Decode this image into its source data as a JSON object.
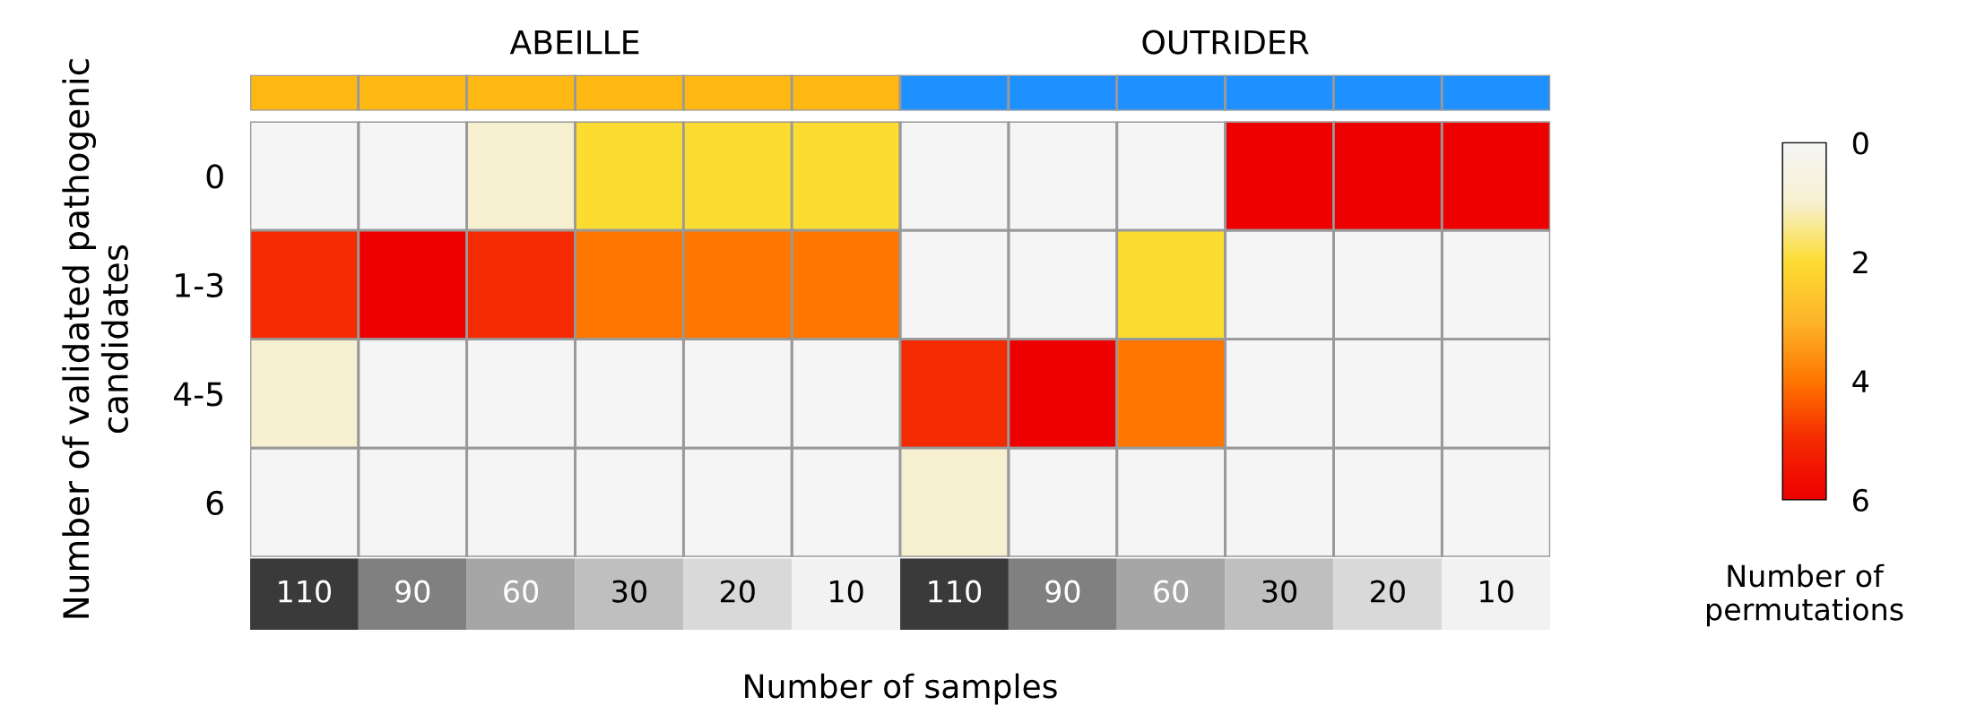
{
  "chart_data": {
    "type": "heatmap",
    "annotations": [
      "ABEILLE",
      "OUTRIDER"
    ],
    "xlabel": "Number of samples",
    "ylabel": "Number of validated pathogenic candidates",
    "clabel": "Number of permutations",
    "categories": [
      "110",
      "90",
      "60",
      "30",
      "20",
      "10",
      "110",
      "90",
      "60",
      "30",
      "20",
      "10"
    ],
    "y_categories": [
      "0",
      "1-3",
      "4-5",
      "6"
    ],
    "cells": [
      [
        null,
        null,
        1,
        2,
        2,
        2,
        null,
        null,
        null,
        6,
        6,
        6
      ],
      [
        5,
        6,
        5,
        4,
        4,
        4,
        null,
        null,
        2,
        null,
        null,
        null
      ],
      [
        1,
        null,
        null,
        null,
        null,
        null,
        5,
        6,
        4,
        null,
        null,
        null
      ],
      [
        null,
        null,
        null,
        null,
        null,
        null,
        1,
        null,
        null,
        null,
        null,
        null
      ]
    ],
    "colors": [
      "#f5f5f5",
      "#f7f0d0",
      "#fddc32",
      "#fdb52a",
      "#ff7700",
      "#f42a00",
      "#ee0000"
    ],
    "clim": [
      0,
      6
    ],
    "cticks": [
      0,
      2,
      4,
      6
    ]
  }
}
